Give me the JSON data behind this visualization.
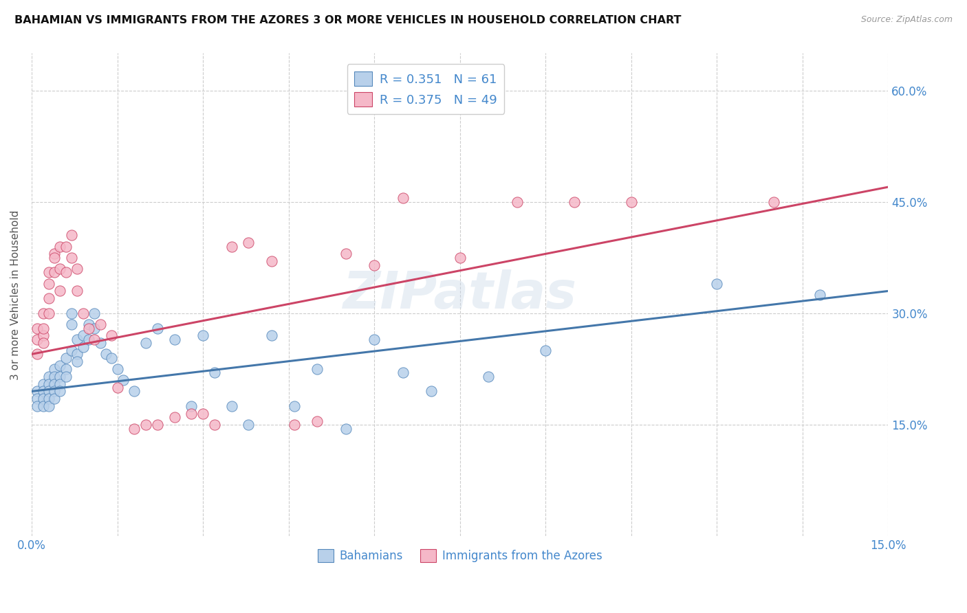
{
  "title": "BAHAMIAN VS IMMIGRANTS FROM THE AZORES 3 OR MORE VEHICLES IN HOUSEHOLD CORRELATION CHART",
  "source": "Source: ZipAtlas.com",
  "ylabel": "3 or more Vehicles in Household",
  "ytick_labels": [
    "15.0%",
    "30.0%",
    "45.0%",
    "60.0%"
  ],
  "ytick_values": [
    0.15,
    0.3,
    0.45,
    0.6
  ],
  "xlim": [
    0.0,
    0.15
  ],
  "ylim": [
    0.0,
    0.65
  ],
  "blue_R": 0.351,
  "blue_N": 61,
  "pink_R": 0.375,
  "pink_N": 49,
  "blue_color": "#b8d0ea",
  "pink_color": "#f5b8c8",
  "blue_edge_color": "#5588bb",
  "pink_edge_color": "#cc4466",
  "blue_line_color": "#4477aa",
  "pink_line_color": "#cc4466",
  "legend_label_blue": "Bahamians",
  "legend_label_pink": "Immigrants from the Azores",
  "text_blue": "#4488cc",
  "watermark": "ZIPatlas",
  "blue_trend_x": [
    0.0,
    0.15
  ],
  "blue_trend_y": [
    0.195,
    0.33
  ],
  "pink_trend_x": [
    0.0,
    0.15
  ],
  "pink_trend_y": [
    0.245,
    0.47
  ],
  "blue_x": [
    0.001,
    0.001,
    0.001,
    0.002,
    0.002,
    0.002,
    0.002,
    0.003,
    0.003,
    0.003,
    0.003,
    0.003,
    0.004,
    0.004,
    0.004,
    0.004,
    0.004,
    0.005,
    0.005,
    0.005,
    0.005,
    0.006,
    0.006,
    0.006,
    0.007,
    0.007,
    0.007,
    0.008,
    0.008,
    0.008,
    0.009,
    0.009,
    0.01,
    0.01,
    0.011,
    0.011,
    0.012,
    0.013,
    0.014,
    0.015,
    0.016,
    0.018,
    0.02,
    0.022,
    0.025,
    0.028,
    0.03,
    0.032,
    0.035,
    0.038,
    0.042,
    0.046,
    0.05,
    0.055,
    0.06,
    0.065,
    0.07,
    0.08,
    0.09,
    0.12,
    0.138
  ],
  "blue_y": [
    0.195,
    0.185,
    0.175,
    0.205,
    0.195,
    0.185,
    0.175,
    0.215,
    0.205,
    0.195,
    0.185,
    0.175,
    0.225,
    0.215,
    0.205,
    0.195,
    0.185,
    0.23,
    0.215,
    0.205,
    0.195,
    0.24,
    0.225,
    0.215,
    0.25,
    0.3,
    0.285,
    0.265,
    0.245,
    0.235,
    0.27,
    0.255,
    0.285,
    0.265,
    0.3,
    0.28,
    0.26,
    0.245,
    0.24,
    0.225,
    0.21,
    0.195,
    0.26,
    0.28,
    0.265,
    0.175,
    0.27,
    0.22,
    0.175,
    0.15,
    0.27,
    0.175,
    0.225,
    0.145,
    0.265,
    0.22,
    0.195,
    0.215,
    0.25,
    0.34,
    0.325
  ],
  "pink_x": [
    0.001,
    0.001,
    0.001,
    0.002,
    0.002,
    0.002,
    0.002,
    0.003,
    0.003,
    0.003,
    0.003,
    0.004,
    0.004,
    0.004,
    0.005,
    0.005,
    0.005,
    0.006,
    0.006,
    0.007,
    0.007,
    0.008,
    0.008,
    0.009,
    0.01,
    0.011,
    0.012,
    0.014,
    0.015,
    0.018,
    0.02,
    0.022,
    0.025,
    0.028,
    0.03,
    0.032,
    0.035,
    0.038,
    0.042,
    0.046,
    0.05,
    0.055,
    0.06,
    0.065,
    0.075,
    0.085,
    0.095,
    0.105,
    0.13
  ],
  "pink_y": [
    0.245,
    0.265,
    0.28,
    0.27,
    0.26,
    0.28,
    0.3,
    0.32,
    0.3,
    0.34,
    0.355,
    0.38,
    0.355,
    0.375,
    0.39,
    0.36,
    0.33,
    0.39,
    0.355,
    0.405,
    0.375,
    0.36,
    0.33,
    0.3,
    0.28,
    0.265,
    0.285,
    0.27,
    0.2,
    0.145,
    0.15,
    0.15,
    0.16,
    0.165,
    0.165,
    0.15,
    0.39,
    0.395,
    0.37,
    0.15,
    0.155,
    0.38,
    0.365,
    0.455,
    0.375,
    0.45,
    0.45,
    0.45,
    0.45
  ]
}
